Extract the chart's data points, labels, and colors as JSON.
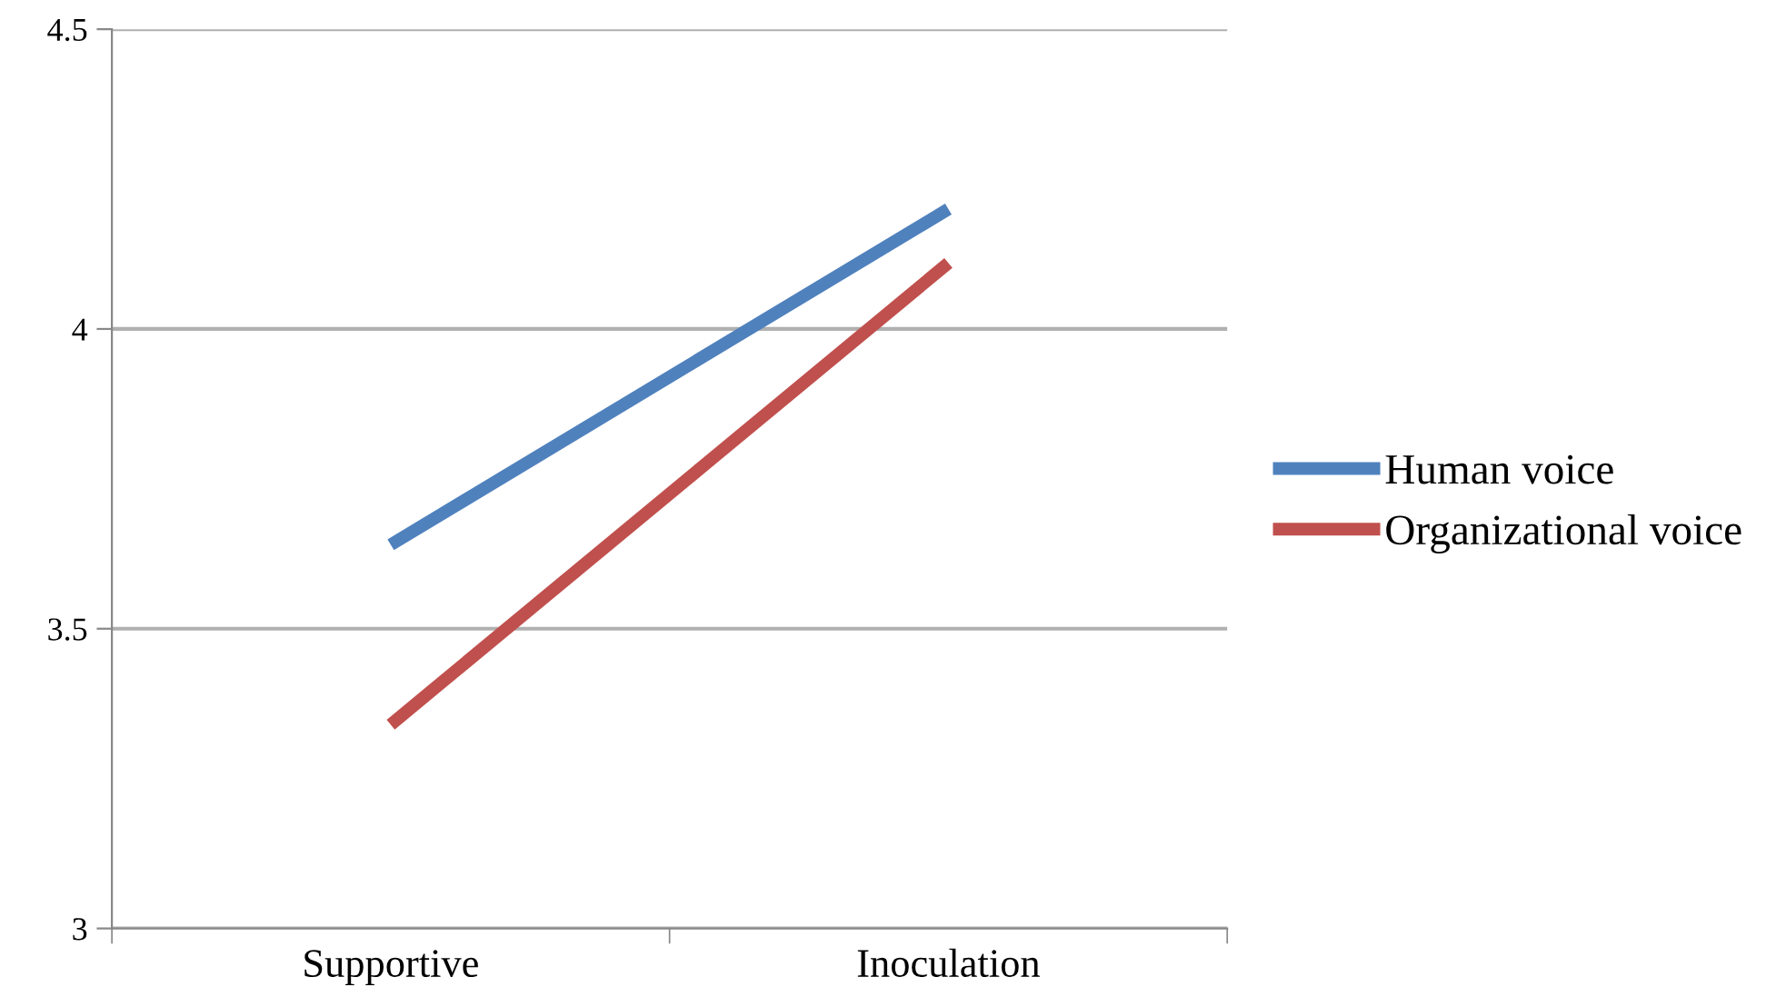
{
  "chart_data": {
    "type": "line",
    "categories": [
      "Supportive",
      "Inoculation"
    ],
    "series": [
      {
        "name": "Human voice",
        "color": "#4f81bd",
        "values": [
          3.64,
          4.2
        ]
      },
      {
        "name": "Organizational voice",
        "color": "#c0504d",
        "values": [
          3.34,
          4.11
        ]
      }
    ],
    "ylim": [
      3,
      4.5
    ],
    "yticks": [
      3,
      3.5,
      4,
      4.5
    ],
    "grid": "y",
    "legend": "right",
    "marker": "none",
    "line_style": "solid"
  }
}
